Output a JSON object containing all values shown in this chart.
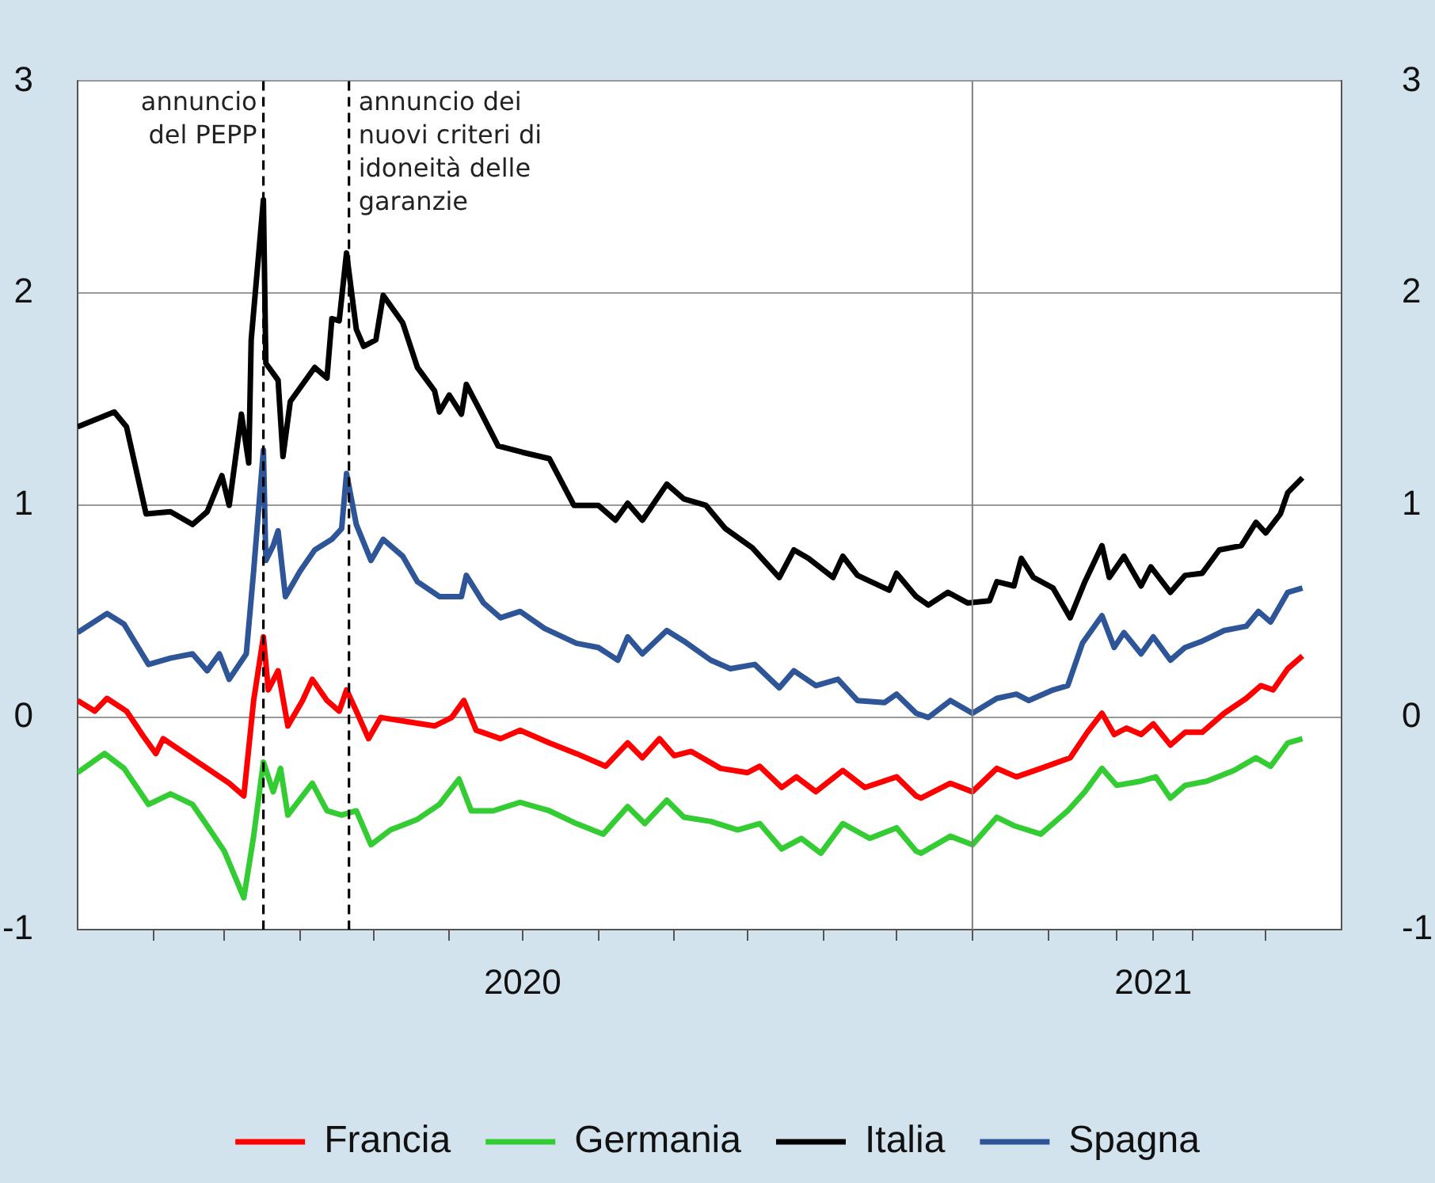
{
  "chart_data": {
    "type": "line",
    "xlim": [
      "2020-01-01",
      "2021-06-01"
    ],
    "xticks": [
      {
        "value": "2020-02-01",
        "label": null
      },
      {
        "value": "2020-03-01",
        "label": null
      },
      {
        "value": "2020-04-01",
        "label": null
      },
      {
        "value": "2020-05-01",
        "label": null
      },
      {
        "value": "2020-06-01",
        "label": null
      },
      {
        "value": "2020-07-01",
        "label": "2020"
      },
      {
        "value": "2020-08-01",
        "label": null
      },
      {
        "value": "2020-09-01",
        "label": null
      },
      {
        "value": "2020-10-01",
        "label": null
      },
      {
        "value": "2020-11-01",
        "label": null
      },
      {
        "value": "2020-12-01",
        "label": null
      },
      {
        "value": "2021-01-01",
        "label": null
      },
      {
        "value": "2021-02-01",
        "label": null
      },
      {
        "value": "2021-03-01",
        "label": null
      },
      {
        "value": "2021-03-16",
        "label": "2021"
      },
      {
        "value": "2021-04-01",
        "label": null
      },
      {
        "value": "2021-05-01",
        "label": null
      }
    ],
    "ylim": [
      -1,
      3
    ],
    "yticks": [
      -1,
      0,
      1,
      2,
      3
    ],
    "y2lim": [
      -1,
      3
    ],
    "y2ticks": [
      -1,
      0,
      1,
      2,
      3
    ],
    "grid": "y",
    "legend": "bottom",
    "line_style": "solid",
    "ref_lines": [
      {
        "axis": "x",
        "value": "2020-03-17",
        "label": "annuncio del PEPP",
        "color": "#000000",
        "line_style": "dashed"
      },
      {
        "axis": "x",
        "value": "2020-04-21",
        "label": "annuncio dei nuovi criteri di idoneità delle garanzie",
        "color": "#000000",
        "line_style": "dashed"
      },
      {
        "axis": "x",
        "value": "2021-01-01",
        "color": "#808080",
        "line_style": "solid"
      }
    ],
    "series": [
      {
        "name": "Francia",
        "color": "#ff0000",
        "x": [
          "2020-01-01",
          "2020-01-08",
          "2020-01-13",
          "2020-01-21",
          "2020-01-28",
          "2020-02-02",
          "2020-02-05",
          "2020-02-14",
          "2020-02-23",
          "2020-03-03",
          "2020-03-09",
          "2020-03-13",
          "2020-03-17",
          "2020-03-19",
          "2020-03-23",
          "2020-03-27",
          "2020-04-02",
          "2020-04-06",
          "2020-04-12",
          "2020-04-17",
          "2020-04-20",
          "2020-04-24",
          "2020-04-29",
          "2020-05-04",
          "2020-05-15",
          "2020-05-26",
          "2020-06-02",
          "2020-06-07",
          "2020-06-12",
          "2020-06-22",
          "2020-06-30",
          "2020-07-12",
          "2020-07-23",
          "2020-08-04",
          "2020-08-13",
          "2020-08-19",
          "2020-08-26",
          "2020-09-01",
          "2020-09-08",
          "2020-09-20",
          "2020-10-01",
          "2020-10-06",
          "2020-10-15",
          "2020-10-21",
          "2020-10-29",
          "2020-11-09",
          "2020-11-18",
          "2020-12-01",
          "2020-12-09",
          "2020-12-11",
          "2020-12-23",
          "2021-01-01",
          "2021-01-11",
          "2021-01-19",
          "2021-01-29",
          "2021-02-10",
          "2021-02-17",
          "2021-02-23",
          "2021-02-28",
          "2021-03-05",
          "2021-03-11",
          "2021-03-16",
          "2021-03-23",
          "2021-03-29",
          "2021-04-05",
          "2021-04-14",
          "2021-04-23",
          "2021-04-29",
          "2021-05-04",
          "2021-05-10",
          "2021-05-16"
        ],
        "values": [
          0.08,
          0.03,
          0.09,
          0.03,
          -0.09,
          -0.17,
          -0.1,
          -0.17,
          -0.24,
          -0.31,
          -0.37,
          0.08,
          0.38,
          0.13,
          0.22,
          -0.04,
          0.08,
          0.18,
          0.08,
          0.03,
          0.13,
          0.03,
          -0.1,
          0.0,
          -0.02,
          -0.04,
          0.0,
          0.08,
          -0.06,
          -0.1,
          -0.06,
          -0.12,
          -0.17,
          -0.23,
          -0.12,
          -0.19,
          -0.1,
          -0.18,
          -0.16,
          -0.24,
          -0.26,
          -0.23,
          -0.33,
          -0.28,
          -0.35,
          -0.25,
          -0.33,
          -0.28,
          -0.37,
          -0.38,
          -0.31,
          -0.35,
          -0.24,
          -0.28,
          -0.24,
          -0.19,
          -0.07,
          0.02,
          -0.08,
          -0.05,
          -0.08,
          -0.03,
          -0.13,
          -0.07,
          -0.07,
          0.02,
          0.09,
          0.15,
          0.13,
          0.23,
          0.29
        ]
      },
      {
        "name": "Germania",
        "color": "#33cc33",
        "x": [
          "2020-01-01",
          "2020-01-12",
          "2020-01-20",
          "2020-01-30",
          "2020-02-08",
          "2020-02-17",
          "2020-02-23",
          "2020-03-01",
          "2020-03-09",
          "2020-03-13",
          "2020-03-17",
          "2020-03-21",
          "2020-03-24",
          "2020-03-27",
          "2020-04-06",
          "2020-04-12",
          "2020-04-18",
          "2020-04-24",
          "2020-04-30",
          "2020-05-08",
          "2020-05-19",
          "2020-05-28",
          "2020-06-05",
          "2020-06-10",
          "2020-06-19",
          "2020-06-30",
          "2020-07-12",
          "2020-07-23",
          "2020-08-03",
          "2020-08-13",
          "2020-08-20",
          "2020-08-29",
          "2020-09-05",
          "2020-09-16",
          "2020-09-27",
          "2020-10-06",
          "2020-10-15",
          "2020-10-23",
          "2020-10-31",
          "2020-11-09",
          "2020-11-20",
          "2020-12-01",
          "2020-12-09",
          "2020-12-11",
          "2020-12-23",
          "2021-01-01",
          "2021-01-11",
          "2021-01-18",
          "2021-01-29",
          "2021-02-09",
          "2021-02-16",
          "2021-02-23",
          "2021-03-01",
          "2021-03-11",
          "2021-03-17",
          "2021-03-23",
          "2021-03-29",
          "2021-04-07",
          "2021-04-18",
          "2021-04-27",
          "2021-05-03",
          "2021-05-10",
          "2021-05-16"
        ],
        "values": [
          -0.26,
          -0.17,
          -0.24,
          -0.41,
          -0.36,
          -0.41,
          -0.51,
          -0.63,
          -0.85,
          -0.56,
          -0.21,
          -0.35,
          -0.24,
          -0.46,
          -0.31,
          -0.44,
          -0.46,
          -0.44,
          -0.6,
          -0.53,
          -0.48,
          -0.41,
          -0.29,
          -0.44,
          -0.44,
          -0.4,
          -0.44,
          -0.5,
          -0.55,
          -0.42,
          -0.5,
          -0.39,
          -0.47,
          -0.49,
          -0.53,
          -0.5,
          -0.62,
          -0.57,
          -0.64,
          -0.5,
          -0.57,
          -0.52,
          -0.63,
          -0.64,
          -0.56,
          -0.6,
          -0.47,
          -0.51,
          -0.55,
          -0.44,
          -0.35,
          -0.24,
          -0.32,
          -0.3,
          -0.28,
          -0.38,
          -0.32,
          -0.3,
          -0.25,
          -0.19,
          -0.23,
          -0.12,
          -0.1
        ]
      },
      {
        "name": "Italia",
        "color": "#000000",
        "x": [
          "2020-01-01",
          "2020-01-16",
          "2020-01-21",
          "2020-01-29",
          "2020-02-08",
          "2020-02-17",
          "2020-02-23",
          "2020-02-29",
          "2020-03-03",
          "2020-03-08",
          "2020-03-11",
          "2020-03-12",
          "2020-03-17",
          "2020-03-18",
          "2020-03-23",
          "2020-03-25",
          "2020-03-28",
          "2020-04-07",
          "2020-04-12",
          "2020-04-14",
          "2020-04-17",
          "2020-04-20",
          "2020-04-24",
          "2020-04-27",
          "2020-05-02",
          "2020-05-05",
          "2020-05-13",
          "2020-05-19",
          "2020-05-26",
          "2020-05-28",
          "2020-06-01",
          "2020-06-06",
          "2020-06-08",
          "2020-06-13",
          "2020-06-21",
          "2020-07-01",
          "2020-07-12",
          "2020-07-22",
          "2020-08-01",
          "2020-08-08",
          "2020-08-13",
          "2020-08-19",
          "2020-08-29",
          "2020-09-05",
          "2020-09-14",
          "2020-09-22",
          "2020-10-03",
          "2020-10-14",
          "2020-10-20",
          "2020-10-26",
          "2020-11-05",
          "2020-11-09",
          "2020-11-15",
          "2020-11-28",
          "2020-12-01",
          "2020-12-09",
          "2020-12-14",
          "2020-12-22",
          "2020-12-30",
          "2021-01-08",
          "2021-01-11",
          "2021-01-18",
          "2021-01-21",
          "2021-01-26",
          "2021-02-03",
          "2021-02-10",
          "2021-02-16",
          "2021-02-23",
          "2021-02-26",
          "2021-03-04",
          "2021-03-11",
          "2021-03-15",
          "2021-03-23",
          "2021-03-29",
          "2021-04-05",
          "2021-04-12",
          "2021-04-21",
          "2021-04-27",
          "2021-05-01",
          "2021-05-07",
          "2021-05-10",
          "2021-05-16"
        ],
        "values": [
          1.37,
          1.44,
          1.37,
          0.96,
          0.97,
          0.91,
          0.97,
          1.14,
          1.0,
          1.43,
          1.2,
          1.78,
          2.44,
          1.67,
          1.59,
          1.23,
          1.49,
          1.65,
          1.6,
          1.88,
          1.87,
          2.19,
          1.83,
          1.75,
          1.78,
          1.99,
          1.86,
          1.65,
          1.54,
          1.44,
          1.52,
          1.43,
          1.57,
          1.46,
          1.28,
          1.25,
          1.22,
          1.0,
          1.0,
          0.93,
          1.01,
          0.93,
          1.1,
          1.03,
          1.0,
          0.89,
          0.8,
          0.66,
          0.79,
          0.75,
          0.66,
          0.76,
          0.67,
          0.6,
          0.68,
          0.57,
          0.53,
          0.59,
          0.54,
          0.55,
          0.64,
          0.62,
          0.75,
          0.66,
          0.61,
          0.47,
          0.64,
          0.81,
          0.66,
          0.76,
          0.62,
          0.71,
          0.59,
          0.67,
          0.68,
          0.79,
          0.81,
          0.92,
          0.87,
          0.96,
          1.06,
          1.13
        ]
      },
      {
        "name": "Spagna",
        "color": "#2e5597",
        "x": [
          "2020-01-01",
          "2020-01-13",
          "2020-01-20",
          "2020-01-30",
          "2020-02-08",
          "2020-02-17",
          "2020-02-23",
          "2020-02-28",
          "2020-03-03",
          "2020-03-10",
          "2020-03-13",
          "2020-03-17",
          "2020-03-18",
          "2020-03-21",
          "2020-03-23",
          "2020-03-26",
          "2020-04-01",
          "2020-04-07",
          "2020-04-14",
          "2020-04-18",
          "2020-04-20",
          "2020-04-24",
          "2020-04-30",
          "2020-05-05",
          "2020-05-13",
          "2020-05-19",
          "2020-05-28",
          "2020-06-06",
          "2020-06-08",
          "2020-06-15",
          "2020-06-22",
          "2020-06-30",
          "2020-07-10",
          "2020-07-23",
          "2020-08-01",
          "2020-08-09",
          "2020-08-13",
          "2020-08-19",
          "2020-08-29",
          "2020-09-05",
          "2020-09-16",
          "2020-09-24",
          "2020-10-04",
          "2020-10-14",
          "2020-10-20",
          "2020-10-29",
          "2020-11-07",
          "2020-11-15",
          "2020-11-26",
          "2020-12-01",
          "2020-12-09",
          "2020-12-14",
          "2020-12-23",
          "2021-01-01",
          "2021-01-11",
          "2021-01-19",
          "2021-01-24",
          "2021-02-03",
          "2021-02-09",
          "2021-02-15",
          "2021-02-23",
          "2021-02-28",
          "2021-03-04",
          "2021-03-11",
          "2021-03-16",
          "2021-03-23",
          "2021-03-29",
          "2021-04-05",
          "2021-04-14",
          "2021-04-23",
          "2021-04-28",
          "2021-05-03",
          "2021-05-10",
          "2021-05-16"
        ],
        "values": [
          0.4,
          0.49,
          0.44,
          0.25,
          0.28,
          0.3,
          0.22,
          0.3,
          0.18,
          0.3,
          0.69,
          1.26,
          0.74,
          0.81,
          0.88,
          0.57,
          0.69,
          0.79,
          0.84,
          0.89,
          1.15,
          0.91,
          0.74,
          0.84,
          0.76,
          0.64,
          0.57,
          0.57,
          0.67,
          0.54,
          0.47,
          0.5,
          0.42,
          0.35,
          0.33,
          0.27,
          0.38,
          0.3,
          0.41,
          0.36,
          0.27,
          0.23,
          0.25,
          0.14,
          0.22,
          0.15,
          0.18,
          0.08,
          0.07,
          0.11,
          0.02,
          0.0,
          0.08,
          0.02,
          0.09,
          0.11,
          0.08,
          0.13,
          0.15,
          0.35,
          0.48,
          0.33,
          0.4,
          0.3,
          0.38,
          0.27,
          0.33,
          0.36,
          0.41,
          0.43,
          0.5,
          0.45,
          0.59,
          0.61
        ]
      }
    ]
  }
}
